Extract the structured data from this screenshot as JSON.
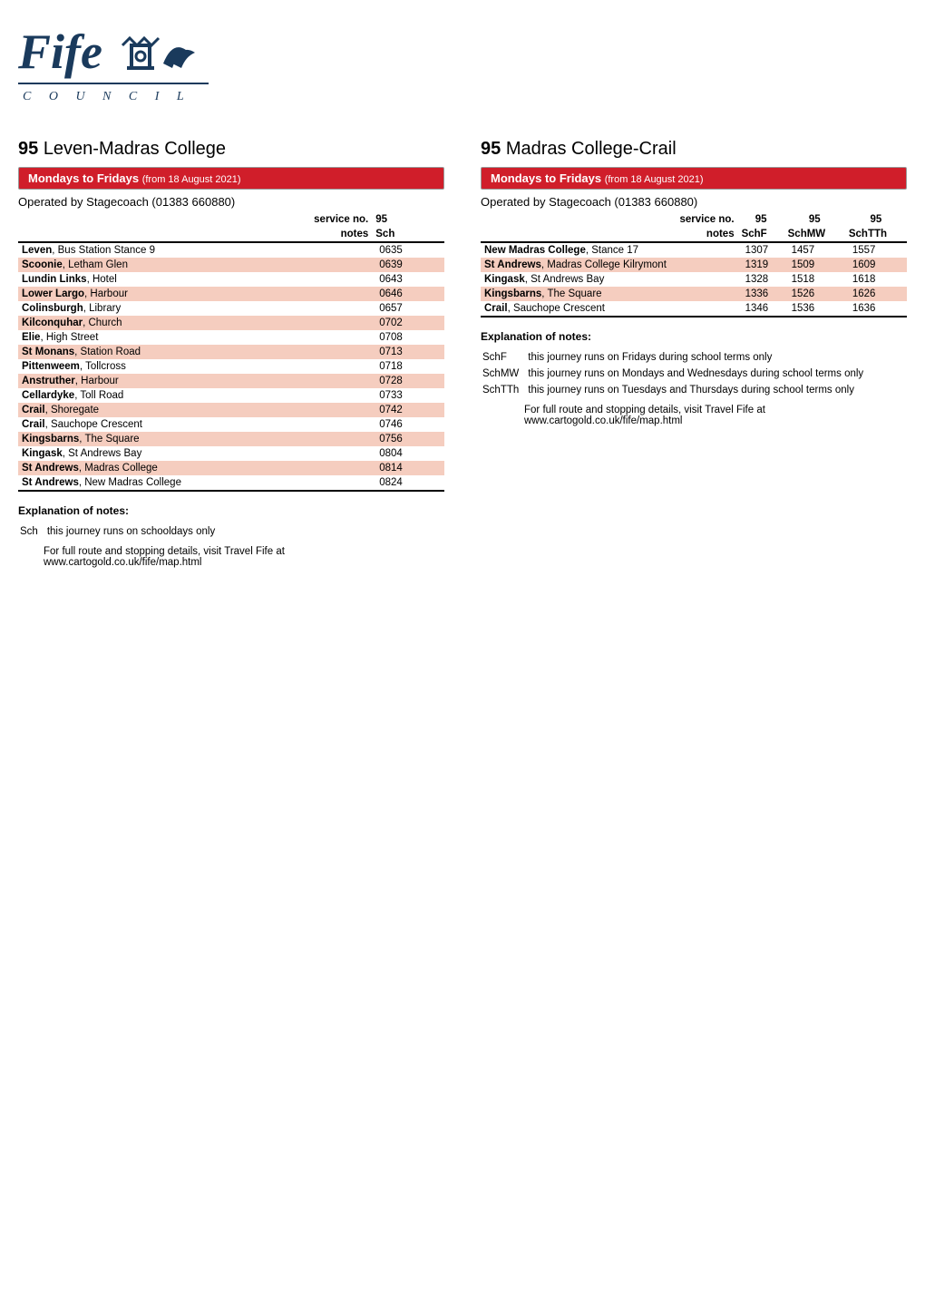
{
  "logo": {
    "text_top": "Fife",
    "text_bottom": "C O U N C I L",
    "color": "#1a3a5c"
  },
  "left": {
    "route_num": "95",
    "route_name": "Leven-Madras College",
    "days_bold": "Mondays to Fridays",
    "days_light": "(from 18 August 2021)",
    "operator": "Operated by Stagecoach (01383 660880)",
    "service_label": "service no.",
    "notes_label": "notes",
    "columns": [
      {
        "service": "95",
        "note": "Sch"
      }
    ],
    "stops": [
      {
        "name_bold": "Leven",
        "name_rest": ", Bus Station Stance 9",
        "times": [
          "0635"
        ]
      },
      {
        "name_bold": "Scoonie",
        "name_rest": ", Letham Glen",
        "times": [
          "0639"
        ]
      },
      {
        "name_bold": "Lundin Links",
        "name_rest": ", Hotel",
        "times": [
          "0643"
        ]
      },
      {
        "name_bold": "Lower Largo",
        "name_rest": ", Harbour",
        "times": [
          "0646"
        ]
      },
      {
        "name_bold": "Colinsburgh",
        "name_rest": ", Library",
        "times": [
          "0657"
        ]
      },
      {
        "name_bold": "Kilconquhar",
        "name_rest": ", Church",
        "times": [
          "0702"
        ]
      },
      {
        "name_bold": "Elie",
        "name_rest": ", High Street",
        "times": [
          "0708"
        ]
      },
      {
        "name_bold": "St Monans",
        "name_rest": ", Station Road",
        "times": [
          "0713"
        ]
      },
      {
        "name_bold": "Pittenweem",
        "name_rest": ", Tollcross",
        "times": [
          "0718"
        ]
      },
      {
        "name_bold": "Anstruther",
        "name_rest": ", Harbour",
        "times": [
          "0728"
        ]
      },
      {
        "name_bold": "Cellardyke",
        "name_rest": ", Toll Road",
        "times": [
          "0733"
        ]
      },
      {
        "name_bold": "Crail",
        "name_rest": ", Shoregate",
        "times": [
          "0742"
        ]
      },
      {
        "name_bold": "Crail",
        "name_rest": ", Sauchope Crescent",
        "times": [
          "0746"
        ]
      },
      {
        "name_bold": "Kingsbarns",
        "name_rest": ", The Square",
        "times": [
          "0756"
        ]
      },
      {
        "name_bold": "Kingask",
        "name_rest": ", St Andrews Bay",
        "times": [
          "0804"
        ]
      },
      {
        "name_bold": "St Andrews",
        "name_rest": ", Madras College",
        "times": [
          "0814"
        ]
      },
      {
        "name_bold": "St Andrews",
        "name_rest": ", New Madras College",
        "times": [
          "0824"
        ]
      }
    ],
    "notes_title": "Explanation of notes:",
    "notes": [
      {
        "code": "Sch",
        "text": "this journey runs on schooldays only"
      }
    ],
    "footer_line1": "For full route and stopping details, visit Travel Fife at",
    "footer_line2": "www.cartogold.co.uk/fife/map.html"
  },
  "right": {
    "route_num": "95",
    "route_name": "Madras College-Crail",
    "days_bold": "Mondays to Fridays",
    "days_light": "(from 18 August 2021)",
    "operator": "Operated by Stagecoach (01383 660880)",
    "service_label": "service no.",
    "notes_label": "notes",
    "columns": [
      {
        "service": "95",
        "note": "SchF"
      },
      {
        "service": "95",
        "note": "SchMW"
      },
      {
        "service": "95",
        "note": "SchTTh"
      }
    ],
    "stops": [
      {
        "name_bold": "New Madras College",
        "name_rest": ", Stance 17",
        "times": [
          "1307",
          "1457",
          "1557"
        ]
      },
      {
        "name_bold": "St Andrews",
        "name_rest": ", Madras College Kilrymont",
        "times": [
          "1319",
          "1509",
          "1609"
        ]
      },
      {
        "name_bold": "Kingask",
        "name_rest": ", St Andrews Bay",
        "times": [
          "1328",
          "1518",
          "1618"
        ]
      },
      {
        "name_bold": "Kingsbarns",
        "name_rest": ", The Square",
        "times": [
          "1336",
          "1526",
          "1626"
        ]
      },
      {
        "name_bold": "Crail",
        "name_rest": ", Sauchope Crescent",
        "times": [
          "1346",
          "1536",
          "1636"
        ]
      }
    ],
    "notes_title": "Explanation of notes:",
    "notes": [
      {
        "code": "SchF",
        "text": "this journey runs on Fridays during school terms only"
      },
      {
        "code": "SchMW",
        "text": "this journey runs on Mondays and Wednesdays during school terms only"
      },
      {
        "code": "SchTTh",
        "text": "this journey runs on Tuesdays and Thursdays during school terms only"
      }
    ],
    "footer_line1": "For full route and stopping details, visit Travel Fife at",
    "footer_line2": "www.cartogold.co.uk/fife/map.html"
  },
  "colors": {
    "banner_bg": "#d01e2a",
    "banner_text": "#ffffff",
    "row_odd_bg": "#f5cdbf",
    "logo_color": "#1a3a5c",
    "table_border": "#000000"
  }
}
